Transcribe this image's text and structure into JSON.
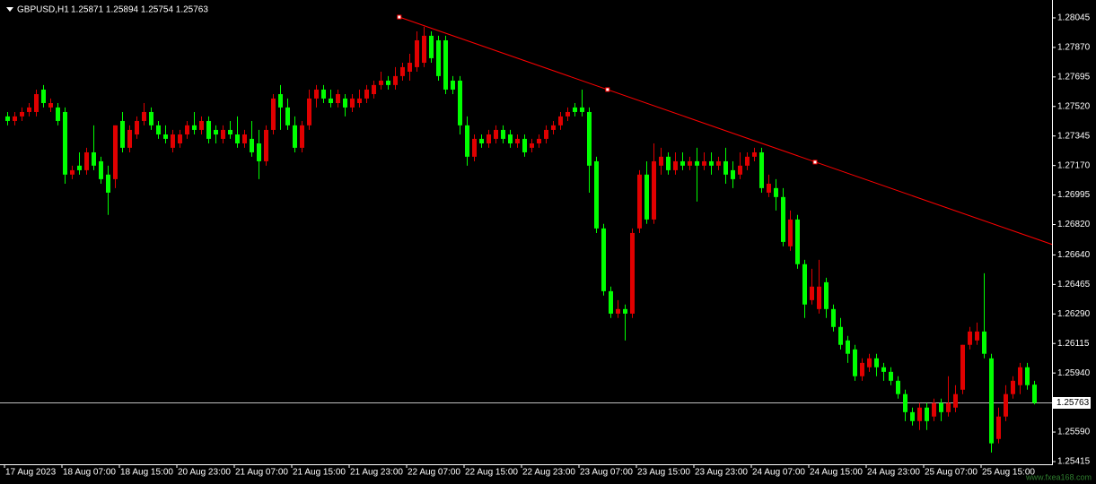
{
  "chart_data": {
    "type": "candlestick",
    "symbol": "GBPUSD,H1",
    "header_prices": "1.25871 1.25894 1.25754 1.25763",
    "up_color": "#e00000",
    "down_color": "#00ff00",
    "ylim": [
      1.25399,
      1.28151
    ],
    "yticks": [
      1.28045,
      {
        "value": 1.2787,
        "label": "1.27870"
      },
      1.27695,
      {
        "value": 1.2752,
        "label": "1.27520"
      },
      1.27345,
      {
        "value": 1.2717,
        "label": "1.27170"
      },
      1.26995,
      {
        "value": 1.2682,
        "label": "1.26820"
      },
      {
        "value": 1.2664,
        "label": "1.26640"
      },
      1.26465,
      {
        "value": 1.2629,
        "label": "1.26290"
      },
      1.26115,
      {
        "value": 1.2594,
        "label": "1.25940"
      },
      {
        "value": 1.2559,
        "label": "1.25590"
      },
      1.25415
    ],
    "bid": 1.25763,
    "bid_color": "#c0c0c0",
    "watermark": "www.fxea168.com",
    "categories": [
      "17 Aug 2023",
      null,
      null,
      null,
      null,
      null,
      null,
      null,
      "18 Aug 07:00",
      null,
      null,
      null,
      null,
      null,
      null,
      null,
      "18 Aug 15:00",
      null,
      null,
      null,
      null,
      null,
      null,
      null,
      "20 Aug 23:00",
      null,
      null,
      null,
      null,
      null,
      null,
      null,
      "21 Aug 07:00",
      null,
      null,
      null,
      null,
      null,
      null,
      null,
      "21 Aug 15:00",
      null,
      null,
      null,
      null,
      null,
      null,
      null,
      "21 Aug 23:00",
      null,
      null,
      null,
      null,
      null,
      null,
      null,
      "22 Aug 07:00",
      null,
      null,
      null,
      null,
      null,
      null,
      null,
      "22 Aug 15:00",
      null,
      null,
      null,
      null,
      null,
      null,
      null,
      "22 Aug 23:00",
      null,
      null,
      null,
      null,
      null,
      null,
      null,
      "23 Aug 07:00",
      null,
      null,
      null,
      null,
      null,
      null,
      null,
      "23 Aug 15:00",
      null,
      null,
      null,
      null,
      null,
      null,
      null,
      "23 Aug 23:00",
      null,
      null,
      null,
      null,
      null,
      null,
      null,
      "24 Aug 07:00",
      null,
      null,
      null,
      null,
      null,
      null,
      null,
      "24 Aug 15:00",
      null,
      null,
      null,
      null,
      null,
      null,
      null,
      "24 Aug 23:00",
      null,
      null,
      null,
      null,
      null,
      null,
      null,
      "25 Aug 07:00",
      null,
      null,
      null,
      null,
      null,
      null,
      null,
      "25 Aug 15:00",
      null,
      null,
      null,
      null,
      null,
      null,
      null
    ],
    "ohlc": [
      [
        1.27461,
        1.27487,
        1.27408,
        1.27434
      ],
      [
        1.27434,
        1.27487,
        1.27408,
        1.27461
      ],
      [
        1.27461,
        1.27514,
        1.27434,
        1.27487
      ],
      [
        1.27487,
        1.2754,
        1.27461,
        1.27514
      ],
      [
        1.27487,
        1.2762,
        1.27461,
        1.27593
      ],
      [
        1.2762,
        1.27647,
        1.27514,
        1.2754
      ],
      [
        1.27514,
        1.27567,
        1.27487,
        1.2754
      ],
      [
        1.27514,
        1.2754,
        1.27408,
        1.27434
      ],
      [
        1.27487,
        1.27514,
        1.27062,
        1.27116
      ],
      [
        1.27116,
        1.27169,
        1.27089,
        1.27142
      ],
      [
        1.27169,
        1.27248,
        1.27116,
        1.27142
      ],
      [
        1.27142,
        1.27275,
        1.27116,
        1.27248
      ],
      [
        1.27248,
        1.27408,
        1.27142,
        1.27169
      ],
      [
        1.27195,
        1.27222,
        1.27062,
        1.27089
      ],
      [
        1.27116,
        1.27169,
        1.26877,
        1.27009
      ],
      [
        1.27089,
        1.27408,
        1.27036,
        1.27408
      ],
      [
        1.27434,
        1.27487,
        1.27248,
        1.27275
      ],
      [
        1.27275,
        1.27408,
        1.27248,
        1.27381
      ],
      [
        1.27354,
        1.27461,
        1.27328,
        1.27434
      ],
      [
        1.27434,
        1.2754,
        1.27408,
        1.27487
      ],
      [
        1.27487,
        1.27514,
        1.27381,
        1.27408
      ],
      [
        1.27408,
        1.27434,
        1.27328,
        1.27354
      ],
      [
        1.27354,
        1.27408,
        1.27301,
        1.27328
      ],
      [
        1.27275,
        1.27381,
        1.27248,
        1.27354
      ],
      [
        1.27301,
        1.27381,
        1.27275,
        1.27354
      ],
      [
        1.27354,
        1.27434,
        1.27328,
        1.27408
      ],
      [
        1.27408,
        1.27487,
        1.27354,
        1.27381
      ],
      [
        1.27381,
        1.27461,
        1.27354,
        1.27434
      ],
      [
        1.27434,
        1.27461,
        1.27301,
        1.27328
      ],
      [
        1.27381,
        1.27408,
        1.27301,
        1.27354
      ],
      [
        1.27328,
        1.27408,
        1.27301,
        1.27381
      ],
      [
        1.27381,
        1.27434,
        1.27328,
        1.27354
      ],
      [
        1.27354,
        1.27461,
        1.27275,
        1.27301
      ],
      [
        1.27301,
        1.27381,
        1.27275,
        1.27354
      ],
      [
        1.27328,
        1.27434,
        1.27222,
        1.27248
      ],
      [
        1.27301,
        1.27381,
        1.27089,
        1.27195
      ],
      [
        1.27195,
        1.27408,
        1.27169,
        1.27381
      ],
      [
        1.27381,
        1.27593,
        1.27354,
        1.27567
      ],
      [
        1.27593,
        1.27647,
        1.27381,
        1.27514
      ],
      [
        1.27514,
        1.27567,
        1.27381,
        1.27408
      ],
      [
        1.27408,
        1.27461,
        1.27248,
        1.27275
      ],
      [
        1.27275,
        1.27434,
        1.27248,
        1.27408
      ],
      [
        1.27408,
        1.2762,
        1.27381,
        1.27567
      ],
      [
        1.27567,
        1.27647,
        1.27514,
        1.2762
      ],
      [
        1.2762,
        1.27647,
        1.2754,
        1.27567
      ],
      [
        1.27567,
        1.2762,
        1.27514,
        1.2754
      ],
      [
        1.2754,
        1.2762,
        1.27514,
        1.27593
      ],
      [
        1.27567,
        1.27593,
        1.27461,
        1.27514
      ],
      [
        1.27514,
        1.27593,
        1.27487,
        1.27567
      ],
      [
        1.2754,
        1.2762,
        1.27514,
        1.27567
      ],
      [
        1.27567,
        1.27647,
        1.2754,
        1.2762
      ],
      [
        1.27593,
        1.27673,
        1.27567,
        1.27647
      ],
      [
        1.27647,
        1.27726,
        1.2762,
        1.27673
      ],
      [
        1.27673,
        1.277,
        1.2762,
        1.27647
      ],
      [
        1.27647,
        1.27753,
        1.2762,
        1.277
      ],
      [
        1.277,
        1.27779,
        1.27673,
        1.27753
      ],
      [
        1.27726,
        1.27832,
        1.27673,
        1.27779
      ],
      [
        1.27753,
        1.27965,
        1.27726,
        1.27912
      ],
      [
        1.27779,
        1.27992,
        1.27753,
        1.27939
      ],
      [
        1.27939,
        1.27965,
        1.27779,
        1.27806
      ],
      [
        1.27912,
        1.27939,
        1.27673,
        1.277
      ],
      [
        1.27912,
        1.27939,
        1.27593,
        1.2762
      ],
      [
        1.27673,
        1.277,
        1.27593,
        1.2762
      ],
      [
        1.27673,
        1.277,
        1.27354,
        1.27408
      ],
      [
        1.27408,
        1.27461,
        1.27169,
        1.27222
      ],
      [
        1.27222,
        1.27354,
        1.27195,
        1.27328
      ],
      [
        1.27328,
        1.27354,
        1.27275,
        1.27301
      ],
      [
        1.27301,
        1.27381,
        1.27275,
        1.27354
      ],
      [
        1.27328,
        1.27408,
        1.27301,
        1.27381
      ],
      [
        1.27381,
        1.27408,
        1.27301,
        1.27328
      ],
      [
        1.27354,
        1.27381,
        1.27275,
        1.27301
      ],
      [
        1.27301,
        1.27354,
        1.27275,
        1.27328
      ],
      [
        1.27328,
        1.27354,
        1.27222,
        1.27248
      ],
      [
        1.27275,
        1.27328,
        1.27248,
        1.27301
      ],
      [
        1.27301,
        1.27354,
        1.27275,
        1.27328
      ],
      [
        1.27328,
        1.27408,
        1.27301,
        1.27381
      ],
      [
        1.27381,
        1.27434,
        1.27354,
        1.27408
      ],
      [
        1.27408,
        1.27487,
        1.27381,
        1.27461
      ],
      [
        1.27461,
        1.27514,
        1.27434,
        1.27487
      ],
      [
        1.27514,
        1.2754,
        1.27461,
        1.27487
      ],
      [
        1.27514,
        1.2762,
        1.27461,
        1.27487
      ],
      [
        1.27487,
        1.27514,
        1.27009,
        1.27169
      ],
      [
        1.27195,
        1.27222,
        1.2677,
        1.26797
      ],
      [
        1.26797,
        1.26824,
        1.26399,
        1.26425
      ],
      [
        1.26425,
        1.26452,
        1.26266,
        1.26292
      ],
      [
        1.26292,
        1.26372,
        1.26266,
        1.26319
      ],
      [
        1.26319,
        1.26346,
        1.26133,
        1.26292
      ],
      [
        1.26292,
        1.26797,
        1.26266,
        1.2677
      ],
      [
        1.26797,
        1.27142,
        1.2677,
        1.27116
      ],
      [
        1.27116,
        1.27195,
        1.26824,
        1.2685
      ],
      [
        1.2685,
        1.27301,
        1.26824,
        1.27195
      ],
      [
        1.27169,
        1.27275,
        1.27116,
        1.27222
      ],
      [
        1.27222,
        1.27248,
        1.27116,
        1.27142
      ],
      [
        1.27142,
        1.27248,
        1.27116,
        1.27195
      ],
      [
        1.27195,
        1.27248,
        1.27142,
        1.27169
      ],
      [
        1.27169,
        1.27222,
        1.27142,
        1.27195
      ],
      [
        1.27195,
        1.27275,
        1.26956,
        1.27169
      ],
      [
        1.27169,
        1.27248,
        1.27142,
        1.27195
      ],
      [
        1.27195,
        1.27248,
        1.27116,
        1.27169
      ],
      [
        1.27169,
        1.27222,
        1.27142,
        1.27195
      ],
      [
        1.27195,
        1.27275,
        1.27062,
        1.27116
      ],
      [
        1.27142,
        1.27195,
        1.27036,
        1.27089
      ],
      [
        1.27116,
        1.27248,
        1.27089,
        1.27169
      ],
      [
        1.27169,
        1.27248,
        1.27142,
        1.27222
      ],
      [
        1.27222,
        1.27275,
        1.27195,
        1.27248
      ],
      [
        1.27248,
        1.27275,
        1.27009,
        1.27036
      ],
      [
        1.27009,
        1.27116,
        1.26983,
        1.27062
      ],
      [
        1.27036,
        1.27089,
        1.26903,
        1.26983
      ],
      [
        1.26983,
        1.27036,
        1.26691,
        1.26717
      ],
      [
        1.26691,
        1.26903,
        1.26664,
        1.2685
      ],
      [
        1.2685,
        1.26877,
        1.26558,
        1.26585
      ],
      [
        1.26585,
        1.26611,
        1.26266,
        1.26346
      ],
      [
        1.26372,
        1.26558,
        1.26346,
        1.26452
      ],
      [
        1.26319,
        1.26611,
        1.26292,
        1.26452
      ],
      [
        1.26478,
        1.26505,
        1.26266,
        1.26319
      ],
      [
        1.26319,
        1.26346,
        1.26186,
        1.26213
      ],
      [
        1.26213,
        1.26266,
        1.2608,
        1.26107
      ],
      [
        1.26133,
        1.2616,
        1.26,
        1.26054
      ],
      [
        1.2608,
        1.26107,
        1.25894,
        1.25921
      ],
      [
        1.25921,
        1.26027,
        1.25894,
        1.26
      ],
      [
        1.25974,
        1.26054,
        1.25947,
        1.26027
      ],
      [
        1.26027,
        1.26054,
        1.25921,
        1.25974
      ],
      [
        1.25974,
        1.26,
        1.25894,
        1.25947
      ],
      [
        1.25947,
        1.25974,
        1.25868,
        1.25894
      ],
      [
        1.25894,
        1.25921,
        1.25788,
        1.25815
      ],
      [
        1.25815,
        1.25841,
        1.25655,
        1.25708
      ],
      [
        1.25708,
        1.25735,
        1.25629,
        1.25655
      ],
      [
        1.25655,
        1.25762,
        1.25602,
        1.25735
      ],
      [
        1.25735,
        1.25762,
        1.25602,
        1.25655
      ],
      [
        1.25682,
        1.25788,
        1.25655,
        1.25762
      ],
      [
        1.25762,
        1.25788,
        1.25655,
        1.25708
      ],
      [
        1.25708,
        1.25921,
        1.25682,
        1.25762
      ],
      [
        1.25735,
        1.25868,
        1.25708,
        1.25815
      ],
      [
        1.25841,
        1.26107,
        1.25815,
        1.26107
      ],
      [
        1.26107,
        1.26213,
        1.2608,
        1.26186
      ],
      [
        1.26133,
        1.26239,
        1.26107,
        1.26186
      ],
      [
        1.26186,
        1.26531,
        1.26027,
        1.26054
      ],
      [
        1.26027,
        1.26054,
        1.25469,
        1.25523
      ],
      [
        1.25549,
        1.25735,
        1.25523,
        1.25682
      ],
      [
        1.25682,
        1.25868,
        1.25655,
        1.25815
      ],
      [
        1.25815,
        1.25921,
        1.25788,
        1.25894
      ],
      [
        1.25868,
        1.26,
        1.25815,
        1.25974
      ],
      [
        1.25974,
        1.26,
        1.25841,
        1.25868
      ],
      [
        1.25871,
        1.25894,
        1.25754,
        1.25763
      ]
    ],
    "trendline": {
      "color": "#ff0000",
      "x": [
        54.6,
        83.6,
        112.5
      ],
      "y": [
        1.2805,
        1.2762,
        1.2719
      ]
    }
  }
}
